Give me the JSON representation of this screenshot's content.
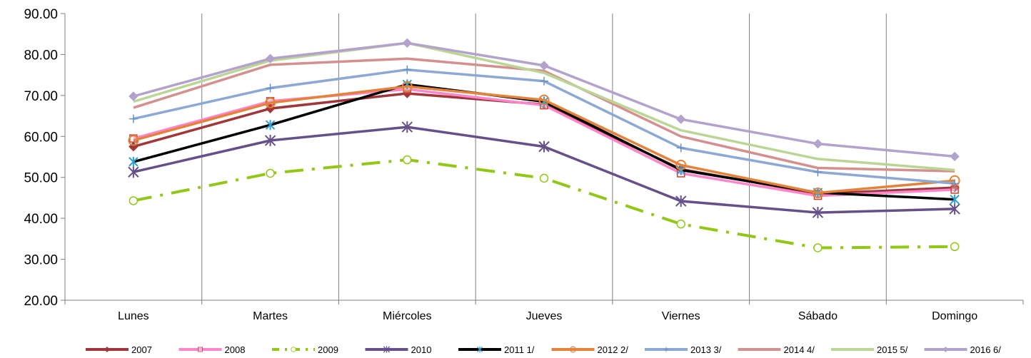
{
  "chart_data": {
    "type": "line",
    "categories": [
      "Lunes",
      "Martes",
      "Miércoles",
      "Jueves",
      "Viernes",
      "Sábado",
      "Domingo"
    ],
    "ylim": [
      20,
      90
    ],
    "yticks": [
      "20.00",
      "30.00",
      "40.00",
      "50.00",
      "60.00",
      "70.00",
      "80.00",
      "90.00"
    ],
    "grid": "vertical category separators",
    "legend": "bottom",
    "series": [
      {
        "name": "2007",
        "color": "#A0353A",
        "marker": "diamond",
        "dash": "solid",
        "values": [
          57.5,
          66.8,
          70.5,
          67.8,
          52.0,
          46.0,
          47.5
        ]
      },
      {
        "name": "2008",
        "color": "#FF86CB",
        "marker": "square",
        "dash": "solid",
        "values": [
          59.5,
          68.6,
          71.5,
          67.6,
          51.0,
          45.5,
          47.0
        ]
      },
      {
        "name": "2009",
        "color": "#92C715",
        "marker": "circle-open",
        "dash": "dashdot",
        "values": [
          44.3,
          51.0,
          54.3,
          49.8,
          38.6,
          32.8,
          33.1
        ]
      },
      {
        "name": "2010",
        "color": "#66508A",
        "marker": "star",
        "dash": "solid",
        "values": [
          51.3,
          59.0,
          62.3,
          57.5,
          44.2,
          41.4,
          42.3
        ]
      },
      {
        "name": "2011 1/",
        "color": "#000000",
        "marker": "asterisk",
        "dash": "solid",
        "values": [
          53.8,
          62.8,
          72.7,
          68.5,
          51.8,
          46.3,
          44.6
        ]
      },
      {
        "name": "2012 2/",
        "color": "#E5823A",
        "marker": "circle",
        "dash": "solid",
        "values": [
          59.0,
          68.2,
          72.2,
          68.9,
          53.0,
          46.2,
          49.2
        ]
      },
      {
        "name": "2013 3/",
        "color": "#8BA9D4",
        "marker": "plus",
        "dash": "solid",
        "values": [
          64.3,
          71.8,
          76.3,
          73.5,
          57.2,
          51.3,
          48.5
        ]
      },
      {
        "name": "2014 4/",
        "color": "#D4908E",
        "marker": "none",
        "dash": "solid",
        "values": [
          67.0,
          77.5,
          79.0,
          76.0,
          60.0,
          52.3,
          51.5
        ]
      },
      {
        "name": "2015 5/",
        "color": "#BBD694",
        "marker": "none",
        "dash": "solid",
        "values": [
          68.5,
          78.5,
          82.8,
          75.5,
          61.5,
          54.5,
          51.8
        ]
      },
      {
        "name": "2016 6/",
        "color": "#B3A2CC",
        "marker": "diamond",
        "dash": "solid",
        "values": [
          69.8,
          79.0,
          82.8,
          77.3,
          64.2,
          58.2,
          55.1
        ]
      }
    ]
  }
}
